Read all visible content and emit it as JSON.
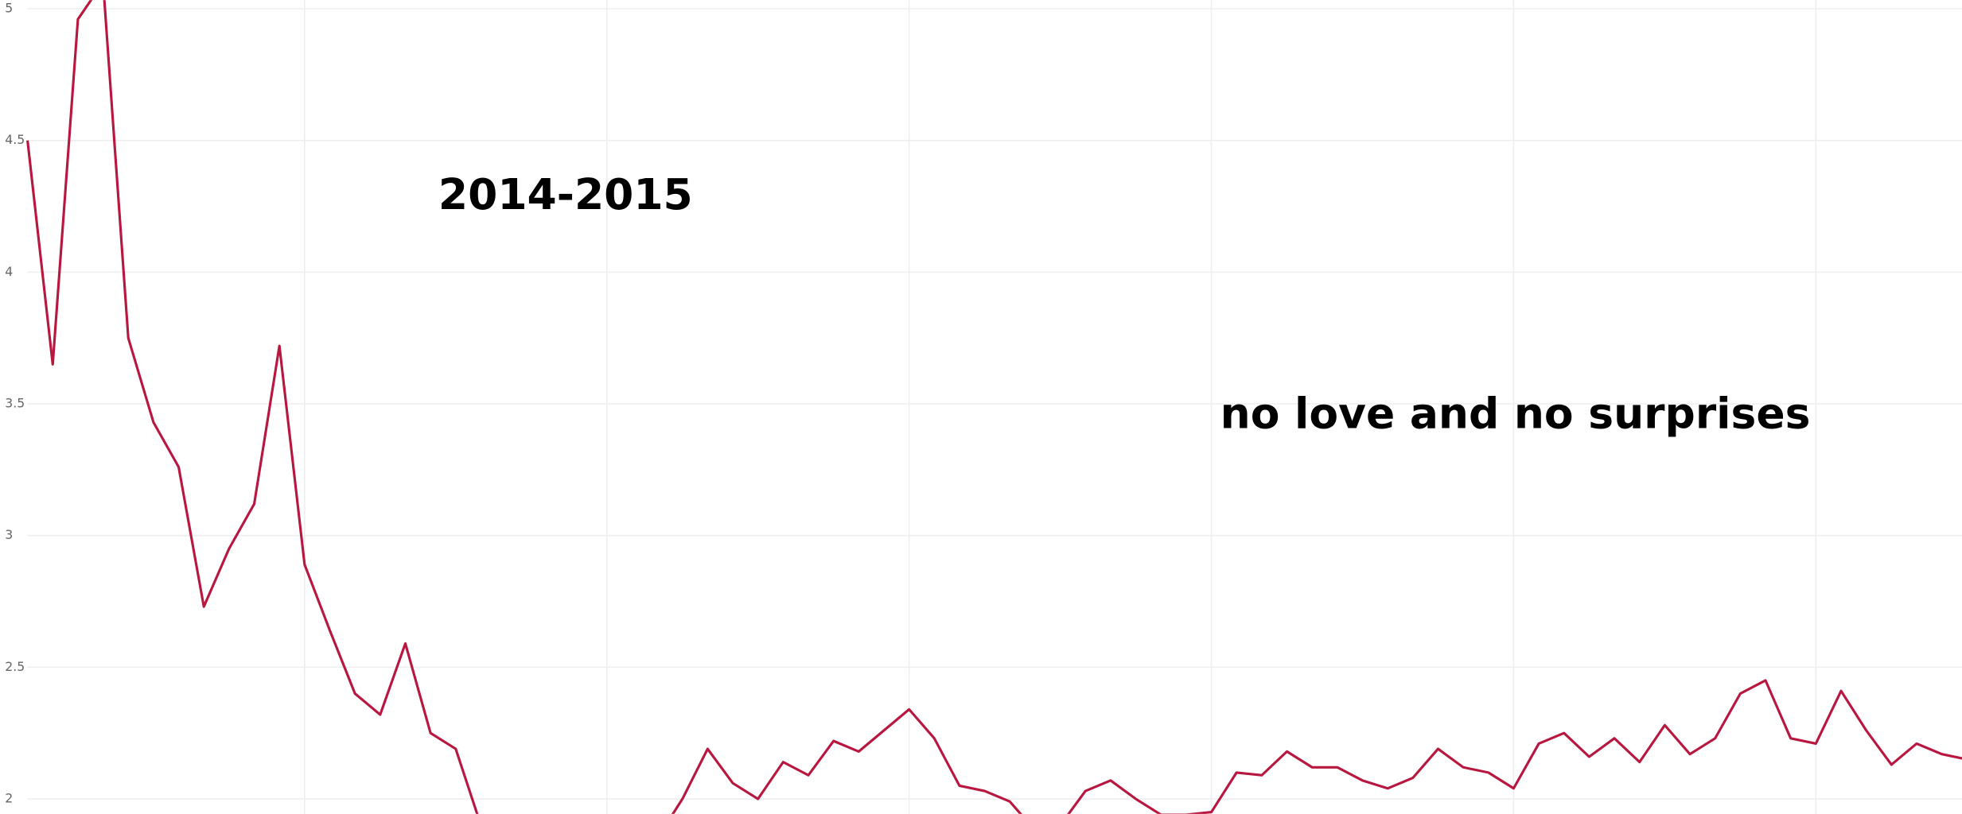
{
  "chart_data": {
    "type": "line",
    "annotations": [
      "2014-2015",
      "no love and no surprises"
    ],
    "categories": [
      null,
      null,
      null,
      null,
      null,
      null,
      null,
      null,
      null,
      null,
      null,
      null,
      null,
      null,
      null,
      null,
      null,
      null,
      null,
      null,
      null,
      null,
      null,
      null,
      null,
      null,
      null,
      null,
      null,
      null,
      null,
      null,
      null,
      null,
      null,
      null,
      null,
      null,
      null,
      null,
      null,
      null,
      null,
      null,
      null,
      null,
      null,
      null,
      null,
      null,
      null,
      null,
      null,
      null,
      null,
      null,
      null,
      null,
      null,
      null,
      null,
      null,
      null,
      null,
      null,
      null,
      null,
      null,
      null,
      null,
      null,
      null,
      null,
      null,
      null,
      null,
      null,
      null
    ],
    "series": [
      {
        "color": "#b8173f",
        "values": [
          4.5,
          3.65,
          4.96,
          5.1,
          3.75,
          3.43,
          3.26,
          2.73,
          2.95,
          3.12,
          3.72,
          2.89,
          2.64,
          2.4,
          2.32,
          2.59,
          2.25,
          2.19,
          1.9,
          1.85,
          1.85,
          1.85,
          1.85,
          1.85,
          1.85,
          1.85,
          2.0,
          2.19,
          2.06,
          2.0,
          2.14,
          2.09,
          2.22,
          2.18,
          2.26,
          2.34,
          2.23,
          2.05,
          2.03,
          1.99,
          1.88,
          1.9,
          2.03,
          2.07,
          2.0,
          1.94,
          1.94,
          1.95,
          2.1,
          2.09,
          2.18,
          2.12,
          2.12,
          2.07,
          2.04,
          2.08,
          2.19,
          2.12,
          2.1,
          2.04,
          2.21,
          2.25,
          2.16,
          2.23,
          2.14,
          2.28,
          2.17,
          2.23,
          2.4,
          2.45,
          2.23,
          2.21,
          2.41,
          2.26,
          2.13,
          2.21,
          2.17,
          2.15
        ]
      }
    ],
    "ylim": [
      1.943,
      5.033
    ],
    "yticks": [
      2,
      2.5,
      3,
      3.5,
      4,
      4.5,
      5
    ],
    "grid": true
  }
}
